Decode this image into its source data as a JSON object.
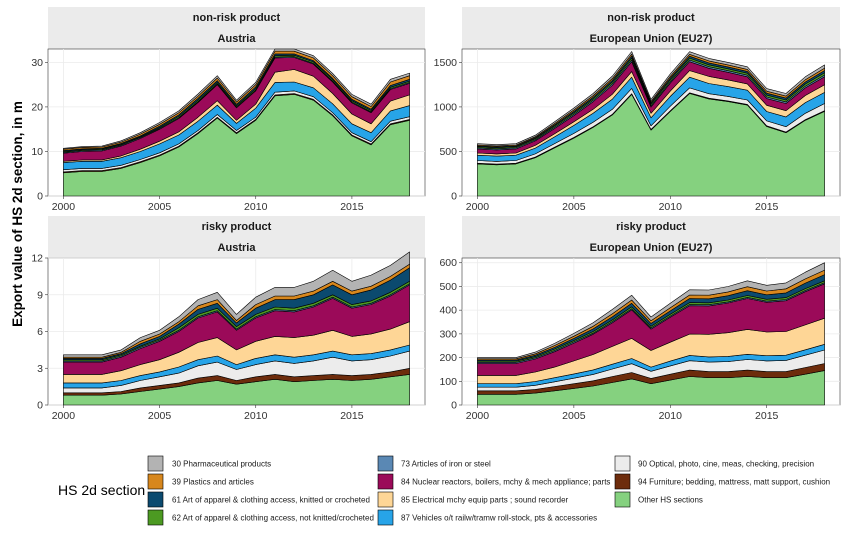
{
  "figure": {
    "ylabel": "Export value of HS 2d section, in m",
    "legend_title": "HS 2d section"
  },
  "legend": [
    {
      "label": "30 Pharmaceutical products",
      "color": "#b3b3b3"
    },
    {
      "label": "39 Plastics and articles",
      "color": "#d7871d"
    },
    {
      "label": "61 Art of apparel & clothing access, knitted or crocheted",
      "color": "#0b4a6f"
    },
    {
      "label": "62 Art of apparel & clothing access, not knitted/crocheted",
      "color": "#4c9a22"
    },
    {
      "label": "73 Articles of iron or steel",
      "color": "#5a88b4"
    },
    {
      "label": "84 Nuclear reactors, boilers, mchy & mech appliance; parts",
      "color": "#9b0a59"
    },
    {
      "label": "85 Electrical mchy equip parts ; sound recorder",
      "color": "#fed696"
    },
    {
      "label": "87 Vehicles o/t railw/tramw roll-stock, pts & accessories",
      "color": "#27a4e8"
    },
    {
      "label": "90 Optical, photo, cine, meas, checking, precision",
      "color": "#ececec"
    },
    {
      "label": "94 Furniture; bedding, mattress, matt support, cushion",
      "color": "#6d2c0c"
    },
    {
      "label": "Other HS sections",
      "color": "#85d17f"
    }
  ],
  "chart_data": [
    {
      "type": "area",
      "strip_top": "non-risk product",
      "strip_bottom": "Austria",
      "x": [
        2000,
        2001,
        2002,
        2003,
        2004,
        2005,
        2006,
        2007,
        2008,
        2009,
        2010,
        2011,
        2012,
        2013,
        2014,
        2015,
        2016,
        2017,
        2018
      ],
      "xticks": [
        2000,
        2005,
        2010,
        2015
      ],
      "ylim": [
        0,
        33
      ],
      "yticks": [
        0,
        10,
        20,
        30
      ],
      "series": [
        {
          "values": [
            5.2,
            5.5,
            5.5,
            6.2,
            7.5,
            9.0,
            11.0,
            14.0,
            17.5,
            14.0,
            17.0,
            22.5,
            22.8,
            21.5,
            18.0,
            13.5,
            11.5,
            16.0,
            17.0
          ]
        },
        {
          "values": [
            0.2,
            0.2,
            0.2,
            0.2,
            0.2,
            0.2,
            0.2,
            0.2,
            0.2,
            0.2,
            0.2,
            0.2,
            0.2,
            0.2,
            0.2,
            0.2,
            0.2,
            0.2,
            0.2
          ]
        },
        {
          "values": [
            0.5,
            0.5,
            0.5,
            0.5,
            0.5,
            0.5,
            0.5,
            0.5,
            0.6,
            0.5,
            0.5,
            0.6,
            0.6,
            0.6,
            0.5,
            0.5,
            0.5,
            0.6,
            0.6
          ]
        },
        {
          "values": [
            1.6,
            1.6,
            1.6,
            1.7,
            1.8,
            2.0,
            2.0,
            2.1,
            2.1,
            1.6,
            2.0,
            2.2,
            2.0,
            2.0,
            2.0,
            2.0,
            2.0,
            2.3,
            2.5
          ]
        },
        {
          "values": [
            0.3,
            0.3,
            0.3,
            0.4,
            0.5,
            0.6,
            0.7,
            0.9,
            1.0,
            0.7,
            0.9,
            2.3,
            2.8,
            2.6,
            2.3,
            2.2,
            2.0,
            2.2,
            2.4
          ]
        },
        {
          "values": [
            1.8,
            1.9,
            2.0,
            2.2,
            2.4,
            2.7,
            3.0,
            3.3,
            3.6,
            2.8,
            3.0,
            3.2,
            2.7,
            2.7,
            2.6,
            2.5,
            2.5,
            2.6,
            2.6
          ]
        },
        {
          "values": [
            0.2,
            0.2,
            0.2,
            0.2,
            0.2,
            0.2,
            0.2,
            0.2,
            0.2,
            0.2,
            0.2,
            0.2,
            0.2,
            0.2,
            0.2,
            0.2,
            0.2,
            0.2,
            0.2
          ]
        },
        {
          "values": [
            0.2,
            0.2,
            0.2,
            0.2,
            0.2,
            0.2,
            0.3,
            0.3,
            0.3,
            0.3,
            0.3,
            0.3,
            0.3,
            0.3,
            0.3,
            0.3,
            0.3,
            0.3,
            0.3
          ]
        },
        {
          "values": [
            0.2,
            0.2,
            0.2,
            0.2,
            0.2,
            0.3,
            0.3,
            0.4,
            0.4,
            0.3,
            0.4,
            0.4,
            0.3,
            0.3,
            0.3,
            0.3,
            0.3,
            0.4,
            0.4
          ]
        },
        {
          "values": [
            0.3,
            0.3,
            0.3,
            0.3,
            0.4,
            0.4,
            0.5,
            0.5,
            0.6,
            0.5,
            0.5,
            0.6,
            0.6,
            0.6,
            0.6,
            0.6,
            0.6,
            0.8,
            0.8
          ]
        },
        {
          "values": [
            0.2,
            0.2,
            0.2,
            0.3,
            0.3,
            0.4,
            0.4,
            0.5,
            0.5,
            0.4,
            0.5,
            0.5,
            0.5,
            0.5,
            0.5,
            0.5,
            0.5,
            0.6,
            0.6
          ]
        }
      ]
    },
    {
      "type": "area",
      "strip_top": "non-risk product",
      "strip_bottom": "European Union (EU27)",
      "x": [
        2000,
        2001,
        2002,
        2003,
        2004,
        2005,
        2006,
        2007,
        2008,
        2009,
        2010,
        2011,
        2012,
        2013,
        2014,
        2015,
        2016,
        2017,
        2018
      ],
      "xticks": [
        2000,
        2005,
        2010,
        2015
      ],
      "ylim": [
        0,
        1650
      ],
      "yticks": [
        0,
        500,
        1000,
        1500
      ],
      "series": [
        {
          "values": [
            360,
            350,
            360,
            430,
            540,
            650,
            770,
            910,
            1140,
            740,
            950,
            1150,
            1090,
            1060,
            1020,
            780,
            710,
            850,
            950
          ]
        },
        {
          "values": [
            8,
            8,
            8,
            8,
            8,
            8,
            8,
            8,
            8,
            8,
            8,
            8,
            8,
            8,
            8,
            8,
            8,
            8,
            8
          ]
        },
        {
          "values": [
            30,
            30,
            30,
            35,
            40,
            45,
            50,
            55,
            60,
            40,
            50,
            55,
            50,
            50,
            50,
            55,
            60,
            70,
            80
          ]
        },
        {
          "values": [
            60,
            60,
            60,
            65,
            75,
            90,
            100,
            115,
            125,
            90,
            110,
            120,
            115,
            110,
            110,
            105,
            110,
            120,
            125
          ]
        },
        {
          "values": [
            25,
            25,
            25,
            30,
            35,
            40,
            45,
            55,
            65,
            50,
            60,
            75,
            80,
            75,
            70,
            70,
            70,
            80,
            85
          ]
        },
        {
          "values": [
            45,
            45,
            45,
            50,
            60,
            70,
            85,
            100,
            110,
            70,
            90,
            100,
            90,
            85,
            80,
            75,
            80,
            85,
            90
          ]
        },
        {
          "values": [
            12,
            12,
            12,
            12,
            14,
            15,
            16,
            18,
            20,
            15,
            17,
            18,
            18,
            18,
            18,
            18,
            18,
            20,
            20
          ]
        },
        {
          "values": [
            12,
            12,
            12,
            13,
            15,
            17,
            18,
            20,
            22,
            17,
            20,
            22,
            22,
            22,
            22,
            22,
            22,
            24,
            26
          ]
        },
        {
          "values": [
            10,
            10,
            10,
            11,
            13,
            15,
            17,
            19,
            21,
            16,
            19,
            21,
            21,
            21,
            21,
            21,
            21,
            23,
            25
          ]
        },
        {
          "values": [
            10,
            10,
            10,
            12,
            14,
            16,
            18,
            20,
            22,
            16,
            20,
            22,
            22,
            22,
            22,
            22,
            22,
            25,
            27
          ]
        },
        {
          "values": [
            15,
            15,
            15,
            17,
            19,
            22,
            24,
            27,
            29,
            22,
            26,
            29,
            29,
            29,
            29,
            29,
            29,
            33,
            35
          ]
        }
      ]
    },
    {
      "type": "area",
      "strip_top": "risky product",
      "strip_bottom": "Austria",
      "x": [
        2000,
        2001,
        2002,
        2003,
        2004,
        2005,
        2006,
        2007,
        2008,
        2009,
        2010,
        2011,
        2012,
        2013,
        2014,
        2015,
        2016,
        2017,
        2018
      ],
      "xticks": [
        2000,
        2005,
        2010,
        2015
      ],
      "ylim": [
        0,
        12
      ],
      "yticks": [
        0,
        3,
        6,
        9,
        12
      ],
      "series": [
        {
          "values": [
            0.8,
            0.8,
            0.8,
            0.9,
            1.1,
            1.3,
            1.5,
            1.8,
            2.0,
            1.7,
            1.9,
            2.1,
            1.9,
            2.0,
            2.1,
            2.0,
            2.1,
            2.3,
            2.5
          ]
        },
        {
          "values": [
            0.2,
            0.2,
            0.2,
            0.2,
            0.3,
            0.3,
            0.3,
            0.4,
            0.4,
            0.3,
            0.4,
            0.4,
            0.4,
            0.4,
            0.4,
            0.4,
            0.4,
            0.4,
            0.5
          ]
        },
        {
          "values": [
            0.4,
            0.4,
            0.4,
            0.5,
            0.6,
            0.7,
            0.8,
            1.0,
            1.1,
            0.9,
            1.0,
            1.1,
            1.1,
            1.2,
            1.4,
            1.2,
            1.2,
            1.3,
            1.4
          ]
        },
        {
          "values": [
            0.4,
            0.4,
            0.4,
            0.4,
            0.4,
            0.4,
            0.5,
            0.5,
            0.5,
            0.4,
            0.5,
            0.5,
            0.5,
            0.5,
            0.5,
            0.5,
            0.5,
            0.5,
            0.5
          ]
        },
        {
          "values": [
            0.7,
            0.7,
            0.7,
            0.8,
            0.9,
            1.0,
            1.2,
            1.4,
            1.5,
            1.2,
            1.4,
            1.5,
            1.6,
            1.6,
            1.7,
            1.5,
            1.6,
            1.7,
            1.9
          ]
        },
        {
          "values": [
            1.0,
            1.0,
            1.0,
            1.1,
            1.3,
            1.5,
            1.7,
            2.0,
            2.1,
            1.6,
            1.9,
            2.1,
            2.1,
            2.3,
            2.6,
            2.3,
            2.4,
            2.7,
            3.0
          ]
        },
        {
          "values": [
            0.1,
            0.1,
            0.1,
            0.1,
            0.1,
            0.1,
            0.1,
            0.1,
            0.1,
            0.1,
            0.1,
            0.1,
            0.1,
            0.1,
            0.1,
            0.1,
            0.1,
            0.1,
            0.1
          ]
        },
        {
          "values": [
            0.1,
            0.1,
            0.1,
            0.1,
            0.1,
            0.1,
            0.2,
            0.2,
            0.2,
            0.2,
            0.2,
            0.2,
            0.2,
            0.2,
            0.2,
            0.2,
            0.2,
            0.2,
            0.2
          ]
        },
        {
          "values": [
            0.1,
            0.1,
            0.1,
            0.1,
            0.2,
            0.2,
            0.3,
            0.4,
            0.4,
            0.3,
            0.5,
            0.6,
            0.7,
            0.7,
            0.8,
            0.8,
            0.9,
            1.0,
            1.1
          ]
        },
        {
          "values": [
            0.1,
            0.1,
            0.1,
            0.1,
            0.2,
            0.2,
            0.2,
            0.3,
            0.3,
            0.2,
            0.3,
            0.3,
            0.3,
            0.3,
            0.3,
            0.3,
            0.3,
            0.3,
            0.3
          ]
        },
        {
          "values": [
            0.2,
            0.2,
            0.2,
            0.2,
            0.3,
            0.3,
            0.4,
            0.5,
            0.6,
            0.5,
            0.6,
            0.7,
            0.7,
            0.8,
            0.9,
            0.8,
            0.9,
            0.9,
            1.0
          ]
        }
      ]
    },
    {
      "type": "area",
      "strip_top": "risky product",
      "strip_bottom": "European Union (EU27)",
      "x": [
        2000,
        2001,
        2002,
        2003,
        2004,
        2005,
        2006,
        2007,
        2008,
        2009,
        2010,
        2011,
        2012,
        2013,
        2014,
        2015,
        2016,
        2017,
        2018
      ],
      "xticks": [
        2000,
        2005,
        2010,
        2015
      ],
      "ylim": [
        0,
        620
      ],
      "yticks": [
        0,
        100,
        200,
        300,
        400,
        500,
        600
      ],
      "series": [
        {
          "values": [
            45,
            45,
            45,
            50,
            60,
            70,
            80,
            95,
            110,
            90,
            105,
            120,
            115,
            115,
            120,
            115,
            115,
            130,
            145
          ]
        },
        {
          "values": [
            15,
            15,
            15,
            16,
            18,
            20,
            22,
            25,
            27,
            22,
            25,
            27,
            26,
            26,
            27,
            26,
            26,
            28,
            30
          ]
        },
        {
          "values": [
            15,
            15,
            15,
            17,
            20,
            23,
            27,
            32,
            37,
            30,
            35,
            40,
            40,
            42,
            45,
            45,
            47,
            52,
            57
          ]
        },
        {
          "values": [
            15,
            15,
            15,
            16,
            17,
            18,
            19,
            20,
            22,
            18,
            20,
            22,
            22,
            22,
            22,
            22,
            22,
            23,
            24
          ]
        },
        {
          "values": [
            35,
            35,
            35,
            40,
            45,
            55,
            65,
            75,
            85,
            70,
            80,
            90,
            95,
            100,
            105,
            100,
            100,
            105,
            110
          ]
        },
        {
          "values": [
            50,
            50,
            50,
            55,
            65,
            75,
            85,
            100,
            120,
            90,
            105,
            120,
            120,
            125,
            130,
            125,
            130,
            140,
            145
          ]
        },
        {
          "values": [
            5,
            5,
            5,
            5,
            5,
            5,
            5,
            5,
            5,
            5,
            5,
            5,
            5,
            5,
            5,
            5,
            5,
            5,
            5
          ]
        },
        {
          "values": [
            5,
            5,
            5,
            5,
            6,
            6,
            7,
            7,
            8,
            7,
            8,
            8,
            8,
            8,
            8,
            8,
            8,
            8,
            8
          ]
        },
        {
          "values": [
            5,
            5,
            5,
            6,
            7,
            9,
            11,
            13,
            15,
            12,
            14,
            17,
            17,
            18,
            20,
            19,
            20,
            23,
            26
          ]
        },
        {
          "values": [
            5,
            5,
            5,
            6,
            8,
            9,
            11,
            13,
            14,
            11,
            13,
            15,
            15,
            16,
            17,
            16,
            17,
            18,
            19
          ]
        },
        {
          "values": [
            5,
            5,
            5,
            7,
            9,
            12,
            15,
            18,
            20,
            16,
            19,
            22,
            22,
            23,
            25,
            24,
            25,
            28,
            31
          ]
        }
      ]
    }
  ]
}
